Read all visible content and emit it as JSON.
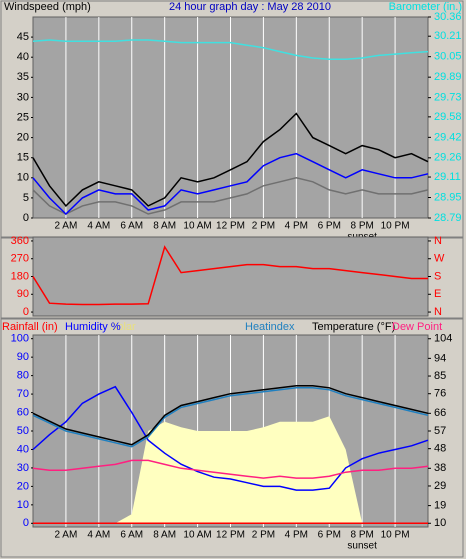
{
  "chart_data": [
    {
      "type": "line",
      "title": "24 hour graph day : May 28 2010",
      "ylabel": "Windspeed (mph)",
      "y2label": "Barometer (in.)",
      "x": [
        0,
        1,
        2,
        3,
        4,
        5,
        6,
        7,
        8,
        9,
        10,
        11,
        12,
        13,
        14,
        15,
        16,
        17,
        18,
        19,
        20,
        21,
        22,
        23,
        24
      ],
      "xlim": [
        0,
        24
      ],
      "xticks": [
        {
          "value": 2,
          "label": "2 AM"
        },
        {
          "value": 4,
          "label": "4 AM"
        },
        {
          "value": 6,
          "label": "6 AM"
        },
        {
          "value": 8,
          "label": "8 AM"
        },
        {
          "value": 10,
          "label": "10 AM"
        },
        {
          "value": 12,
          "label": "12 PM"
        },
        {
          "value": 14,
          "label": "2 PM"
        },
        {
          "value": 16,
          "label": "4 PM"
        },
        {
          "value": 18,
          "label": "6 PM"
        },
        {
          "value": 20,
          "label": "8 PM"
        },
        {
          "value": 22,
          "label": "10 PM"
        }
      ],
      "ylim": [
        0,
        50
      ],
      "yticks": [
        0,
        5,
        10,
        15,
        20,
        25,
        30,
        35,
        40,
        45
      ],
      "y2lim": [
        28.79,
        30.36
      ],
      "y2ticks": [
        28.79,
        28.95,
        29.11,
        29.26,
        29.42,
        29.58,
        29.73,
        29.89,
        30.05,
        30.21,
        30.36
      ],
      "tick_color": "#000000",
      "y2tick_color": "#00e0e0",
      "annotations": [
        {
          "text": "sunset",
          "x": 20
        }
      ],
      "series": [
        {
          "color": "#707070",
          "values": [
            7,
            3,
            1,
            3,
            4,
            4,
            3,
            1,
            2,
            4,
            4,
            4,
            5,
            6,
            8,
            9,
            10,
            9,
            7,
            6,
            7,
            6,
            6,
            6,
            7
          ]
        },
        {
          "color": "#000000",
          "values": [
            15,
            8,
            3,
            7,
            9,
            8,
            7,
            3,
            5,
            10,
            9,
            10,
            12,
            14,
            19,
            22,
            26,
            20,
            18,
            16,
            18,
            17,
            15,
            16,
            14
          ]
        },
        {
          "color": "#0000ff",
          "values": [
            10,
            5,
            1,
            5,
            7,
            6,
            6,
            2,
            3,
            7,
            6,
            7,
            8,
            9,
            13,
            15,
            16,
            14,
            12,
            10,
            12,
            11,
            10,
            10,
            11
          ]
        },
        {
          "color": "#40e0e0",
          "axis": "y2",
          "values": [
            30.17,
            30.18,
            30.17,
            30.17,
            30.17,
            30.17,
            30.18,
            30.18,
            30.17,
            30.16,
            30.16,
            30.16,
            30.16,
            30.14,
            30.12,
            30.09,
            30.06,
            30.04,
            30.03,
            30.03,
            30.04,
            30.06,
            30.07,
            30.08,
            30.09
          ]
        }
      ]
    },
    {
      "type": "line",
      "x": [
        0,
        1,
        2,
        3,
        4,
        5,
        6,
        7,
        8,
        9,
        10,
        11,
        12,
        13,
        14,
        15,
        16,
        17,
        18,
        19,
        20,
        21,
        22,
        23,
        24
      ],
      "xlim": [
        0,
        24
      ],
      "ylim": [
        -20,
        380
      ],
      "yticks": [
        0,
        90,
        180,
        270,
        360
      ],
      "y2lim": [
        -20,
        380
      ],
      "y2ticks": [
        {
          "value": 0,
          "label": "N"
        },
        {
          "value": 90,
          "label": "E"
        },
        {
          "value": 180,
          "label": "S"
        },
        {
          "value": 270,
          "label": "W"
        },
        {
          "value": 360,
          "label": "N"
        }
      ],
      "tick_color": "#ff0000",
      "y2tick_color": "#ff0000",
      "series": [
        {
          "color": "#ff0000",
          "values": [
            180,
            45,
            40,
            38,
            38,
            40,
            40,
            42,
            330,
            200,
            210,
            220,
            230,
            240,
            240,
            230,
            230,
            220,
            220,
            210,
            200,
            190,
            180,
            170,
            170
          ]
        }
      ]
    },
    {
      "type": "line",
      "x": [
        0,
        1,
        2,
        3,
        4,
        5,
        6,
        7,
        8,
        9,
        10,
        11,
        12,
        13,
        14,
        15,
        16,
        17,
        18,
        19,
        20,
        21,
        22,
        23,
        24
      ],
      "xlim": [
        0,
        24
      ],
      "xticks": [
        {
          "value": 2,
          "label": "2 AM"
        },
        {
          "value": 4,
          "label": "4 AM"
        },
        {
          "value": 6,
          "label": "6 AM"
        },
        {
          "value": 8,
          "label": "8 AM"
        },
        {
          "value": 10,
          "label": "10 AM"
        },
        {
          "value": 12,
          "label": "12 PM"
        },
        {
          "value": 14,
          "label": "2 PM"
        },
        {
          "value": 16,
          "label": "4 PM"
        },
        {
          "value": 18,
          "label": "6 PM"
        },
        {
          "value": 20,
          "label": "8 PM"
        },
        {
          "value": 22,
          "label": "10 PM"
        }
      ],
      "ylim": [
        -2,
        102
      ],
      "yticks": [
        0,
        10,
        20,
        30,
        40,
        50,
        60,
        70,
        80,
        90,
        100
      ],
      "y2lim": [
        8.1,
        105.9
      ],
      "y2ticks": [
        10,
        19,
        29,
        38,
        48,
        57,
        66,
        76,
        85,
        94,
        104
      ],
      "tick_color": "#0000ff",
      "y2tick_color": "#000000",
      "annotations": [
        {
          "text": "sunset",
          "x": 20
        }
      ],
      "series": [
        {
          "name": "Rainfall (in)",
          "color": "#ff0000",
          "values": [
            0,
            0,
            0,
            0,
            0,
            0,
            0,
            0,
            0,
            0,
            0,
            0,
            0,
            0,
            0,
            0,
            0,
            0,
            0,
            0,
            0,
            0,
            0,
            0,
            0
          ]
        },
        {
          "name": "Humidity %",
          "color": "#0000ff",
          "values": [
            40,
            48,
            55,
            65,
            70,
            74,
            60,
            45,
            38,
            32,
            28,
            25,
            24,
            22,
            20,
            20,
            18,
            18,
            19,
            30,
            35,
            38,
            40,
            42,
            45
          ]
        },
        {
          "name": "Solar",
          "color": "#ffffc0",
          "type": "area",
          "values": [
            0,
            0,
            0,
            0,
            0,
            0,
            5,
            50,
            55,
            52,
            50,
            50,
            50,
            50,
            52,
            55,
            55,
            55,
            58,
            40,
            0,
            0,
            0,
            0,
            0
          ]
        },
        {
          "name": "Heatindex",
          "color": "#2080c0",
          "axis": "y2",
          "values": [
            65,
            61,
            57,
            55,
            53,
            51,
            49,
            54,
            64,
            69,
            71,
            73,
            75,
            76,
            77,
            78,
            79,
            79,
            78,
            75,
            73,
            71,
            69,
            67,
            65
          ]
        },
        {
          "name": "Temperature (°F)",
          "color": "#000000",
          "axis": "y2",
          "values": [
            66,
            62,
            58,
            56,
            54,
            52,
            50,
            55,
            65,
            70,
            72,
            74,
            76,
            77,
            78,
            79,
            80,
            80,
            79,
            76,
            74,
            72,
            70,
            68,
            66
          ]
        },
        {
          "name": "Dew Point",
          "color": "#ff2080",
          "axis": "y2",
          "values": [
            38,
            37,
            37,
            38,
            39,
            40,
            42,
            42,
            40,
            38,
            37,
            36,
            35,
            34,
            33,
            34,
            33,
            33,
            34,
            36,
            37,
            37,
            38,
            38,
            39
          ]
        }
      ]
    }
  ]
}
